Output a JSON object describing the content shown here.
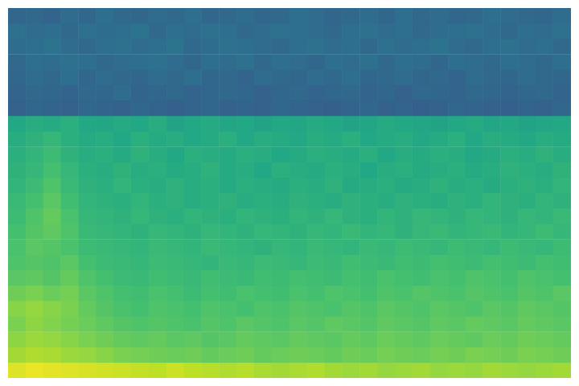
{
  "chart_data": {
    "type": "heatmap",
    "grid": false,
    "tick_labels": false,
    "zlim": [
      0,
      1
    ],
    "cells": [
      [
        0.33,
        0.34,
        0.32,
        0.35,
        0.33,
        0.36,
        0.34,
        0.33,
        0.35,
        0.34,
        0.36,
        0.33,
        0.34,
        0.35,
        0.33,
        0.34,
        0.36,
        0.35,
        0.33,
        0.34,
        0.35,
        0.33,
        0.36,
        0.34,
        0.35,
        0.33,
        0.34,
        0.36,
        0.35,
        0.34,
        0.33,
        0.35
      ],
      [
        0.37,
        0.35,
        0.36,
        0.34,
        0.37,
        0.35,
        0.36,
        0.38,
        0.34,
        0.36,
        0.35,
        0.37,
        0.36,
        0.34,
        0.35,
        0.37,
        0.36,
        0.35,
        0.34,
        0.36,
        0.37,
        0.35,
        0.36,
        0.34,
        0.35,
        0.36,
        0.37,
        0.35,
        0.34,
        0.36,
        0.35,
        0.37
      ],
      [
        0.35,
        0.36,
        0.38,
        0.35,
        0.34,
        0.36,
        0.37,
        0.35,
        0.36,
        0.38,
        0.34,
        0.35,
        0.37,
        0.36,
        0.35,
        0.34,
        0.36,
        0.37,
        0.35,
        0.36,
        0.34,
        0.37,
        0.35,
        0.36,
        0.38,
        0.35,
        0.34,
        0.36,
        0.37,
        0.35,
        0.36,
        0.34
      ],
      [
        0.34,
        0.36,
        0.35,
        0.37,
        0.36,
        0.34,
        0.35,
        0.36,
        0.37,
        0.35,
        0.33,
        0.36,
        0.35,
        0.37,
        0.34,
        0.36,
        0.35,
        0.33,
        0.36,
        0.35,
        0.37,
        0.34,
        0.36,
        0.35,
        0.33,
        0.36,
        0.35,
        0.34,
        0.36,
        0.35,
        0.34,
        0.36
      ],
      [
        0.33,
        0.35,
        0.34,
        0.36,
        0.33,
        0.35,
        0.34,
        0.33,
        0.35,
        0.34,
        0.36,
        0.33,
        0.34,
        0.32,
        0.35,
        0.34,
        0.33,
        0.35,
        0.34,
        0.36,
        0.33,
        0.34,
        0.35,
        0.33,
        0.34,
        0.32,
        0.35,
        0.34,
        0.33,
        0.35,
        0.34,
        0.33
      ],
      [
        0.32,
        0.34,
        0.33,
        0.32,
        0.34,
        0.33,
        0.35,
        0.32,
        0.33,
        0.34,
        0.32,
        0.33,
        0.34,
        0.33,
        0.31,
        0.33,
        0.34,
        0.32,
        0.33,
        0.34,
        0.32,
        0.33,
        0.31,
        0.34,
        0.33,
        0.32,
        0.34,
        0.33,
        0.32,
        0.33,
        0.34,
        0.32
      ],
      [
        0.31,
        0.33,
        0.32,
        0.31,
        0.33,
        0.32,
        0.31,
        0.33,
        0.32,
        0.3,
        0.32,
        0.33,
        0.31,
        0.32,
        0.31,
        0.33,
        0.32,
        0.31,
        0.3,
        0.32,
        0.33,
        0.31,
        0.32,
        0.3,
        0.31,
        0.33,
        0.32,
        0.31,
        0.3,
        0.32,
        0.31,
        0.33
      ],
      [
        0.6,
        0.62,
        0.61,
        0.63,
        0.6,
        0.59,
        0.61,
        0.6,
        0.62,
        0.58,
        0.6,
        0.61,
        0.59,
        0.6,
        0.58,
        0.6,
        0.59,
        0.61,
        0.6,
        0.58,
        0.59,
        0.61,
        0.6,
        0.59,
        0.58,
        0.6,
        0.61,
        0.59,
        0.6,
        0.58,
        0.59,
        0.6
      ],
      [
        0.62,
        0.64,
        0.66,
        0.63,
        0.61,
        0.62,
        0.6,
        0.63,
        0.61,
        0.62,
        0.6,
        0.61,
        0.63,
        0.6,
        0.62,
        0.61,
        0.6,
        0.62,
        0.61,
        0.63,
        0.6,
        0.61,
        0.62,
        0.6,
        0.61,
        0.63,
        0.6,
        0.62,
        0.61,
        0.6,
        0.62,
        0.61
      ],
      [
        0.63,
        0.65,
        0.68,
        0.64,
        0.62,
        0.63,
        0.61,
        0.64,
        0.62,
        0.6,
        0.63,
        0.62,
        0.61,
        0.63,
        0.62,
        0.6,
        0.61,
        0.63,
        0.62,
        0.61,
        0.63,
        0.6,
        0.62,
        0.61,
        0.63,
        0.62,
        0.6,
        0.61,
        0.63,
        0.62,
        0.64,
        0.62
      ],
      [
        0.64,
        0.66,
        0.7,
        0.66,
        0.63,
        0.62,
        0.64,
        0.62,
        0.63,
        0.61,
        0.62,
        0.64,
        0.61,
        0.62,
        0.6,
        0.63,
        0.62,
        0.61,
        0.63,
        0.62,
        0.6,
        0.62,
        0.63,
        0.61,
        0.62,
        0.63,
        0.61,
        0.62,
        0.64,
        0.63,
        0.62,
        0.64
      ],
      [
        0.65,
        0.68,
        0.72,
        0.67,
        0.64,
        0.63,
        0.65,
        0.63,
        0.62,
        0.64,
        0.62,
        0.63,
        0.61,
        0.63,
        0.62,
        0.61,
        0.63,
        0.62,
        0.64,
        0.61,
        0.62,
        0.63,
        0.61,
        0.62,
        0.64,
        0.62,
        0.63,
        0.61,
        0.63,
        0.64,
        0.63,
        0.65
      ],
      [
        0.67,
        0.7,
        0.74,
        0.69,
        0.65,
        0.64,
        0.63,
        0.65,
        0.63,
        0.64,
        0.62,
        0.63,
        0.64,
        0.62,
        0.63,
        0.62,
        0.64,
        0.63,
        0.62,
        0.64,
        0.63,
        0.62,
        0.64,
        0.63,
        0.62,
        0.64,
        0.63,
        0.65,
        0.64,
        0.63,
        0.65,
        0.64
      ],
      [
        0.68,
        0.72,
        0.76,
        0.71,
        0.66,
        0.65,
        0.64,
        0.66,
        0.64,
        0.63,
        0.65,
        0.64,
        0.63,
        0.65,
        0.64,
        0.63,
        0.65,
        0.64,
        0.66,
        0.64,
        0.63,
        0.65,
        0.64,
        0.66,
        0.65,
        0.64,
        0.66,
        0.65,
        0.64,
        0.66,
        0.65,
        0.67
      ],
      [
        0.7,
        0.73,
        0.75,
        0.72,
        0.67,
        0.66,
        0.65,
        0.64,
        0.66,
        0.65,
        0.64,
        0.66,
        0.65,
        0.64,
        0.66,
        0.65,
        0.64,
        0.66,
        0.65,
        0.67,
        0.65,
        0.66,
        0.64,
        0.66,
        0.67,
        0.65,
        0.66,
        0.67,
        0.65,
        0.66,
        0.68,
        0.66
      ],
      [
        0.71,
        0.74,
        0.73,
        0.71,
        0.68,
        0.67,
        0.66,
        0.65,
        0.67,
        0.66,
        0.65,
        0.67,
        0.66,
        0.65,
        0.64,
        0.66,
        0.65,
        0.67,
        0.66,
        0.65,
        0.67,
        0.66,
        0.68,
        0.67,
        0.66,
        0.68,
        0.67,
        0.66,
        0.68,
        0.67,
        0.66,
        0.68
      ],
      [
        0.72,
        0.73,
        0.72,
        0.74,
        0.7,
        0.68,
        0.67,
        0.66,
        0.68,
        0.67,
        0.66,
        0.65,
        0.67,
        0.66,
        0.68,
        0.67,
        0.66,
        0.68,
        0.67,
        0.69,
        0.68,
        0.67,
        0.69,
        0.68,
        0.7,
        0.69,
        0.68,
        0.7,
        0.69,
        0.68,
        0.7,
        0.69
      ],
      [
        0.74,
        0.75,
        0.73,
        0.76,
        0.72,
        0.7,
        0.68,
        0.67,
        0.69,
        0.68,
        0.67,
        0.69,
        0.68,
        0.67,
        0.69,
        0.68,
        0.7,
        0.69,
        0.68,
        0.7,
        0.69,
        0.71,
        0.7,
        0.69,
        0.71,
        0.7,
        0.72,
        0.71,
        0.7,
        0.72,
        0.71,
        0.7
      ],
      [
        0.78,
        0.8,
        0.77,
        0.79,
        0.74,
        0.72,
        0.7,
        0.69,
        0.71,
        0.7,
        0.68,
        0.7,
        0.69,
        0.71,
        0.7,
        0.69,
        0.71,
        0.7,
        0.72,
        0.71,
        0.7,
        0.72,
        0.71,
        0.73,
        0.72,
        0.71,
        0.73,
        0.72,
        0.71,
        0.73,
        0.72,
        0.74
      ],
      [
        0.82,
        0.84,
        0.82,
        0.8,
        0.76,
        0.73,
        0.71,
        0.7,
        0.72,
        0.71,
        0.7,
        0.72,
        0.71,
        0.7,
        0.72,
        0.71,
        0.73,
        0.72,
        0.71,
        0.73,
        0.72,
        0.74,
        0.73,
        0.72,
        0.74,
        0.73,
        0.72,
        0.74,
        0.73,
        0.75,
        0.74,
        0.73
      ],
      [
        0.8,
        0.83,
        0.81,
        0.79,
        0.77,
        0.75,
        0.73,
        0.72,
        0.73,
        0.72,
        0.71,
        0.73,
        0.72,
        0.74,
        0.73,
        0.72,
        0.74,
        0.73,
        0.75,
        0.74,
        0.73,
        0.75,
        0.74,
        0.73,
        0.75,
        0.74,
        0.76,
        0.75,
        0.74,
        0.76,
        0.75,
        0.74
      ],
      [
        0.83,
        0.85,
        0.84,
        0.82,
        0.8,
        0.78,
        0.76,
        0.75,
        0.76,
        0.74,
        0.75,
        0.73,
        0.74,
        0.76,
        0.75,
        0.74,
        0.76,
        0.75,
        0.74,
        0.76,
        0.75,
        0.77,
        0.76,
        0.75,
        0.77,
        0.76,
        0.75,
        0.77,
        0.76,
        0.78,
        0.77,
        0.76
      ],
      [
        0.86,
        0.88,
        0.87,
        0.85,
        0.84,
        0.82,
        0.8,
        0.79,
        0.78,
        0.77,
        0.78,
        0.76,
        0.77,
        0.78,
        0.76,
        0.77,
        0.78,
        0.77,
        0.76,
        0.78,
        0.77,
        0.79,
        0.78,
        0.77,
        0.79,
        0.78,
        0.8,
        0.79,
        0.78,
        0.8,
        0.79,
        0.78
      ],
      [
        0.95,
        0.97,
        0.96,
        0.95,
        0.94,
        0.93,
        0.92,
        0.91,
        0.9,
        0.92,
        0.9,
        0.89,
        0.88,
        0.89,
        0.87,
        0.86,
        0.87,
        0.88,
        0.86,
        0.85,
        0.86,
        0.84,
        0.85,
        0.86,
        0.84,
        0.85,
        0.84,
        0.86,
        0.85,
        0.84,
        0.85,
        0.86
      ]
    ]
  }
}
